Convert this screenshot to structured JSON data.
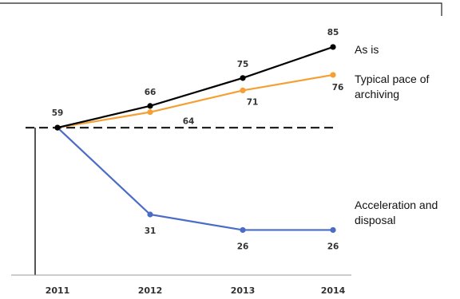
{
  "chart_data": {
    "type": "line",
    "x": [
      "2011",
      "2012",
      "2013",
      "2014"
    ],
    "ylim": [
      0,
      100
    ],
    "grid": false,
    "legend_placement": "right",
    "baseline": {
      "value": 59,
      "style": "dashed"
    },
    "series": [
      {
        "name": "As is",
        "color": "#000000",
        "values": [
          59,
          66,
          75,
          85
        ],
        "labels": [
          "59",
          "66",
          "75",
          "85"
        ]
      },
      {
        "name": "Typical pace of archiving",
        "color": "#f5a033",
        "values": [
          59,
          64,
          71,
          76
        ],
        "labels": [
          "",
          "64",
          "71",
          "76"
        ]
      },
      {
        "name": "Acceleration and disposal",
        "color": "#4a6bc8",
        "values": [
          59,
          31,
          26,
          26
        ],
        "labels": [
          "",
          "31",
          "26",
          "26"
        ]
      }
    ]
  }
}
